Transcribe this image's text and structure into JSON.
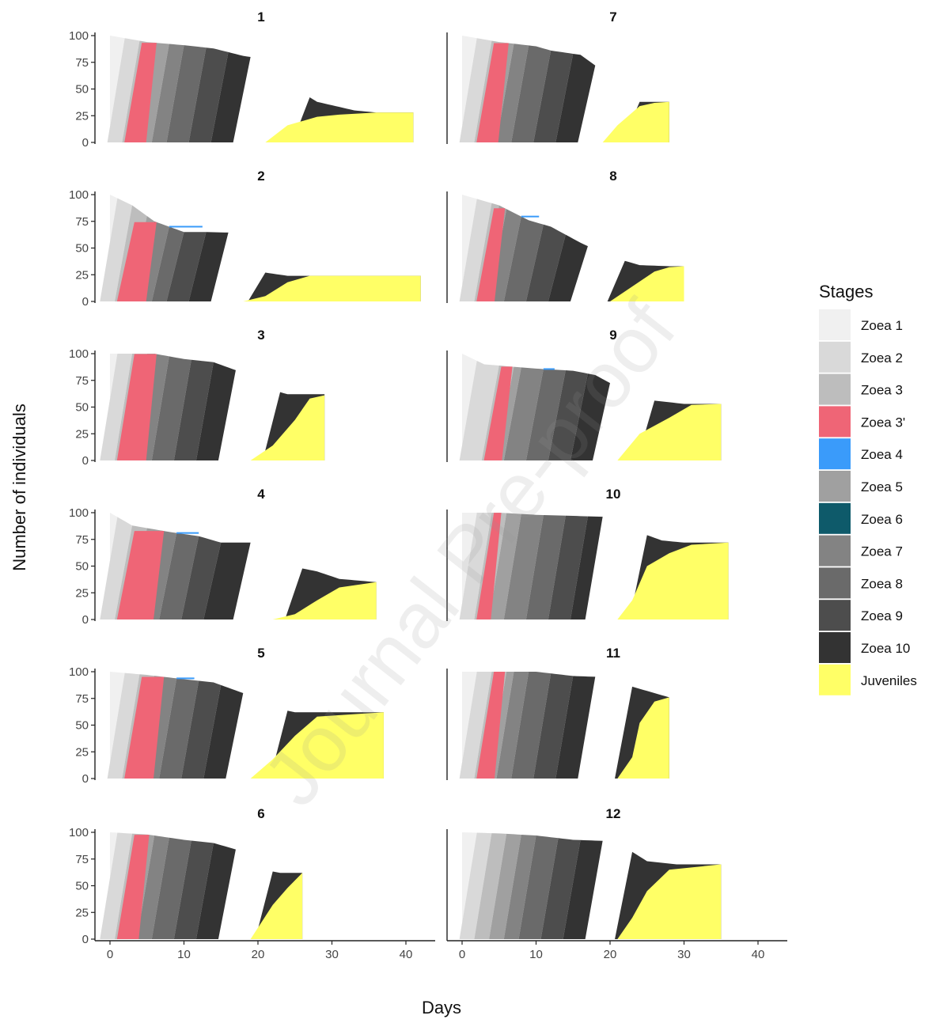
{
  "watermark": "Journal Pre-proof",
  "chart_data": {
    "type": "area",
    "subtype": "stacked-area small multiples",
    "xlabel": "Days",
    "ylabel": "Number of individuals",
    "xlim": [
      -2,
      44
    ],
    "ylim": [
      0,
      100
    ],
    "xticks": [
      0,
      10,
      20,
      30,
      40
    ],
    "yticks": [
      0,
      25,
      50,
      75,
      100
    ],
    "grid": false,
    "legend": {
      "title": "Stages",
      "position": "right",
      "entries": [
        {
          "name": "Zoea 1",
          "color": "#f0f0f0"
        },
        {
          "name": "Zoea 2",
          "color": "#d9d9d9"
        },
        {
          "name": "Zoea 3",
          "color": "#bdbdbd"
        },
        {
          "name": "Zoea 3'",
          "color": "#ef6576"
        },
        {
          "name": "Zoea 4",
          "color": "#3a9bfa"
        },
        {
          "name": "Zoea 5",
          "color": "#a0a0a0"
        },
        {
          "name": "Zoea 6",
          "color": "#0e5a6a"
        },
        {
          "name": "Zoea 7",
          "color": "#838383"
        },
        {
          "name": "Zoea 8",
          "color": "#6a6a6a"
        },
        {
          "name": "Zoea 9",
          "color": "#4d4d4d"
        },
        {
          "name": "Zoea 10",
          "color": "#333333"
        },
        {
          "name": "Juveniles",
          "color": "#ffff66"
        }
      ]
    },
    "panels": [
      {
        "title": "1",
        "end_day": 41,
        "transitions": [
          2,
          4,
          6,
          8,
          10,
          13,
          16,
          19,
          23,
          27
        ],
        "total": [
          [
            0,
            100
          ],
          [
            5,
            94
          ],
          [
            10,
            91
          ],
          [
            14,
            88
          ],
          [
            18,
            81
          ],
          [
            21,
            78
          ],
          [
            24,
            55
          ],
          [
            28,
            38
          ],
          [
            33,
            30
          ],
          [
            36,
            28
          ],
          [
            41,
            28
          ]
        ],
        "juveniles": [
          [
            21,
            0
          ],
          [
            24,
            16
          ],
          [
            28,
            24
          ],
          [
            31,
            26
          ],
          [
            36,
            28
          ],
          [
            41,
            28
          ]
        ],
        "pink_width": 2,
        "blue_width": 0
      },
      {
        "title": "7",
        "end_day": 28,
        "transitions": [
          2,
          4,
          6,
          7,
          9,
          12,
          15,
          18,
          21,
          24
        ],
        "total": [
          [
            0,
            100
          ],
          [
            5,
            94
          ],
          [
            10,
            90
          ],
          [
            12,
            86
          ],
          [
            16,
            82
          ],
          [
            18,
            72
          ],
          [
            20,
            62
          ],
          [
            24,
            38
          ],
          [
            28,
            38
          ]
        ],
        "juveniles": [
          [
            19,
            0
          ],
          [
            21,
            16
          ],
          [
            24,
            34
          ],
          [
            26,
            37
          ],
          [
            28,
            38
          ]
        ],
        "pink_width": 2,
        "blue_width": 0
      },
      {
        "title": "2",
        "end_day": 42,
        "transitions": [
          1,
          3,
          5,
          6,
          8,
          10,
          13,
          16,
          19,
          21
        ],
        "total": [
          [
            0,
            100
          ],
          [
            3,
            90
          ],
          [
            6,
            75
          ],
          [
            10,
            65
          ],
          [
            13,
            65
          ],
          [
            19,
            64
          ],
          [
            21,
            27
          ],
          [
            24,
            24
          ],
          [
            42,
            24
          ]
        ],
        "juveniles": [
          [
            18,
            0
          ],
          [
            21,
            5
          ],
          [
            24,
            18
          ],
          [
            27,
            24
          ],
          [
            42,
            24
          ]
        ],
        "pink_width": 3,
        "blue_width": 1.5
      },
      {
        "title": "8",
        "end_day": 30,
        "transitions": [
          2,
          4,
          5,
          6,
          8,
          11,
          14,
          17,
          20,
          22
        ],
        "total": [
          [
            0,
            100
          ],
          [
            5,
            90
          ],
          [
            9,
            76
          ],
          [
            12,
            70
          ],
          [
            16,
            55
          ],
          [
            20,
            42
          ],
          [
            24,
            34
          ],
          [
            28,
            33
          ],
          [
            30,
            33
          ]
        ],
        "juveniles": [
          [
            20,
            0
          ],
          [
            23,
            14
          ],
          [
            26,
            28
          ],
          [
            28,
            32
          ],
          [
            30,
            33
          ]
        ],
        "pink_width": 1.5,
        "blue_width": 0.8
      },
      {
        "title": "3",
        "end_day": 29,
        "transitions": [
          1,
          3,
          5,
          6,
          8,
          11,
          14,
          17,
          20,
          23
        ],
        "total": [
          [
            0,
            100
          ],
          [
            6,
            100
          ],
          [
            10,
            95
          ],
          [
            14,
            92
          ],
          [
            18,
            82
          ],
          [
            21,
            68
          ],
          [
            24,
            62
          ],
          [
            28,
            62
          ],
          [
            29,
            62
          ]
        ],
        "juveniles": [
          [
            19,
            0
          ],
          [
            22,
            14
          ],
          [
            25,
            38
          ],
          [
            27,
            58
          ],
          [
            29,
            61
          ]
        ],
        "pink_width": 3,
        "blue_width": 0
      },
      {
        "title": "9",
        "end_day": 35,
        "transitions": [
          2,
          5,
          7,
          8,
          11,
          14,
          17,
          20,
          23,
          26
        ],
        "total": [
          [
            0,
            100
          ],
          [
            3,
            90
          ],
          [
            10,
            86
          ],
          [
            15,
            84
          ],
          [
            18,
            80
          ],
          [
            22,
            65
          ],
          [
            26,
            56
          ],
          [
            30,
            53
          ],
          [
            35,
            53
          ]
        ],
        "juveniles": [
          [
            21,
            0
          ],
          [
            24,
            25
          ],
          [
            28,
            40
          ],
          [
            31,
            52
          ],
          [
            35,
            53
          ]
        ],
        "pink_width": 1.5,
        "blue_width": 0.5
      },
      {
        "title": "4",
        "end_day": 36,
        "transitions": [
          1,
          3,
          5,
          7,
          9,
          12,
          15,
          19,
          23,
          26
        ],
        "total": [
          [
            0,
            100
          ],
          [
            3,
            88
          ],
          [
            8,
            82
          ],
          [
            12,
            78
          ],
          [
            15,
            72
          ],
          [
            19,
            72
          ],
          [
            23,
            52
          ],
          [
            28,
            45
          ],
          [
            31,
            38
          ],
          [
            36,
            35
          ]
        ],
        "juveniles": [
          [
            22,
            0
          ],
          [
            25,
            5
          ],
          [
            28,
            18
          ],
          [
            31,
            30
          ],
          [
            36,
            35
          ]
        ],
        "pink_width": 4,
        "blue_width": 1
      },
      {
        "title": "10",
        "end_day": 36,
        "transitions": [
          2,
          4,
          6,
          8,
          11,
          14,
          17,
          19,
          22,
          25
        ],
        "total": [
          [
            0,
            100
          ],
          [
            5,
            100
          ],
          [
            10,
            98
          ],
          [
            15,
            97
          ],
          [
            20,
            96
          ],
          [
            23,
            84
          ],
          [
            27,
            74
          ],
          [
            30,
            72
          ],
          [
            36,
            72
          ]
        ],
        "juveniles": [
          [
            21,
            0
          ],
          [
            23,
            18
          ],
          [
            25,
            50
          ],
          [
            28,
            62
          ],
          [
            31,
            70
          ],
          [
            36,
            72
          ]
        ],
        "pink_width": 1,
        "blue_width": 0
      },
      {
        "title": "5",
        "end_day": 37,
        "transitions": [
          2,
          4,
          6,
          7,
          9,
          12,
          15,
          18,
          21,
          24
        ],
        "total": [
          [
            0,
            100
          ],
          [
            5,
            97
          ],
          [
            10,
            93
          ],
          [
            14,
            90
          ],
          [
            18,
            80
          ],
          [
            21,
            68
          ],
          [
            25,
            62
          ],
          [
            37,
            62
          ]
        ],
        "juveniles": [
          [
            19,
            0
          ],
          [
            22,
            18
          ],
          [
            25,
            40
          ],
          [
            28,
            58
          ],
          [
            37,
            62
          ]
        ],
        "pink_width": 3,
        "blue_width": 0.8
      },
      {
        "title": "11",
        "end_day": 28,
        "transitions": [
          2,
          4,
          6,
          7,
          9,
          12,
          15,
          18,
          20,
          23
        ],
        "total": [
          [
            0,
            100
          ],
          [
            5,
            100
          ],
          [
            10,
            100
          ],
          [
            15,
            96
          ],
          [
            19,
            95
          ],
          [
            22,
            88
          ],
          [
            26,
            80
          ],
          [
            28,
            76
          ]
        ],
        "juveniles": [
          [
            21,
            0
          ],
          [
            23,
            20
          ],
          [
            24,
            52
          ],
          [
            26,
            72
          ],
          [
            28,
            76
          ]
        ],
        "pink_width": 1.5,
        "blue_width": 0
      },
      {
        "title": "6",
        "end_day": 26,
        "transitions": [
          1,
          3,
          5,
          6,
          8,
          11,
          14,
          17,
          20,
          22
        ],
        "total": [
          [
            0,
            100
          ],
          [
            5,
            98
          ],
          [
            10,
            93
          ],
          [
            14,
            90
          ],
          [
            18,
            82
          ],
          [
            20,
            66
          ],
          [
            23,
            62
          ],
          [
            26,
            62
          ]
        ],
        "juveniles": [
          [
            19,
            0
          ],
          [
            22,
            32
          ],
          [
            24,
            48
          ],
          [
            26,
            62
          ]
        ],
        "pink_width": 2,
        "blue_width": 0
      },
      {
        "title": "12",
        "end_day": 35,
        "transitions": [
          2,
          4,
          6,
          8,
          10,
          13,
          16,
          19,
          21,
          23
        ],
        "total": [
          [
            0,
            100
          ],
          [
            5,
            99
          ],
          [
            10,
            97
          ],
          [
            15,
            93
          ],
          [
            19,
            92
          ],
          [
            22,
            86
          ],
          [
            25,
            73
          ],
          [
            29,
            70
          ],
          [
            32,
            70
          ],
          [
            35,
            70
          ]
        ],
        "juveniles": [
          [
            21,
            0
          ],
          [
            23,
            20
          ],
          [
            25,
            45
          ],
          [
            28,
            65
          ],
          [
            35,
            70
          ]
        ],
        "pink_width": 0,
        "blue_width": 0
      }
    ]
  }
}
